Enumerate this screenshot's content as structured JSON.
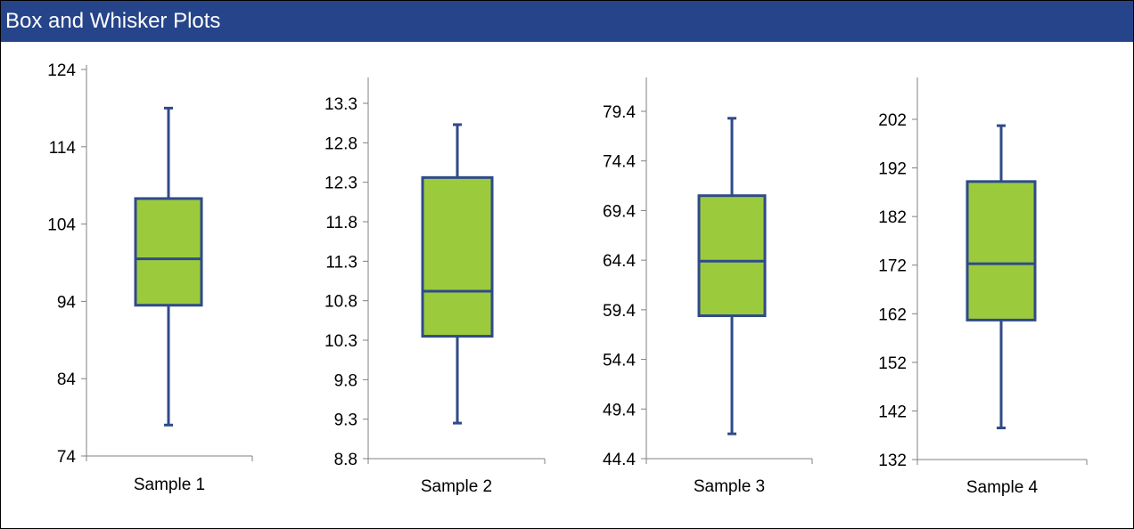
{
  "title": "Box and Whisker Plots",
  "colors": {
    "header": "#264489",
    "box_fill": "#9bcb3c",
    "stroke": "#2f4a8a",
    "axis": "#808080",
    "text": "#000000"
  },
  "chart_data": [
    {
      "type": "box",
      "category": "Sample 1",
      "yticks": [
        "74",
        "84",
        "94",
        "104",
        "114",
        "124"
      ],
      "ylim": [
        74,
        124
      ],
      "min": 78,
      "q1": 93.5,
      "median": 99.5,
      "q3": 107.3,
      "max": 119
    },
    {
      "type": "box",
      "category": "Sample 2",
      "yticks": [
        "8.8",
        "9.3",
        "9.8",
        "10.3",
        "10.8",
        "11.3",
        "11.8",
        "12.3",
        "12.8",
        "13.3"
      ],
      "ylim": [
        8.8,
        13.3
      ],
      "min": 9.25,
      "q1": 10.35,
      "median": 10.92,
      "q3": 12.36,
      "max": 13.03
    },
    {
      "type": "box",
      "category": "Sample 3",
      "yticks": [
        "44.4",
        "49.4",
        "54.4",
        "59.4",
        "64.4",
        "69.4",
        "74.4",
        "79.4"
      ],
      "ylim": [
        44.4,
        79.4
      ],
      "min": 46.9,
      "q1": 58.8,
      "median": 64.3,
      "q3": 70.9,
      "max": 78.7
    },
    {
      "type": "box",
      "category": "Sample 4",
      "yticks": [
        "132",
        "142",
        "152",
        "162",
        "172",
        "182",
        "192",
        "202"
      ],
      "ylim": [
        132,
        202
      ],
      "min": 138.5,
      "q1": 160.7,
      "median": 172.3,
      "q3": 189.2,
      "max": 200.7
    }
  ]
}
